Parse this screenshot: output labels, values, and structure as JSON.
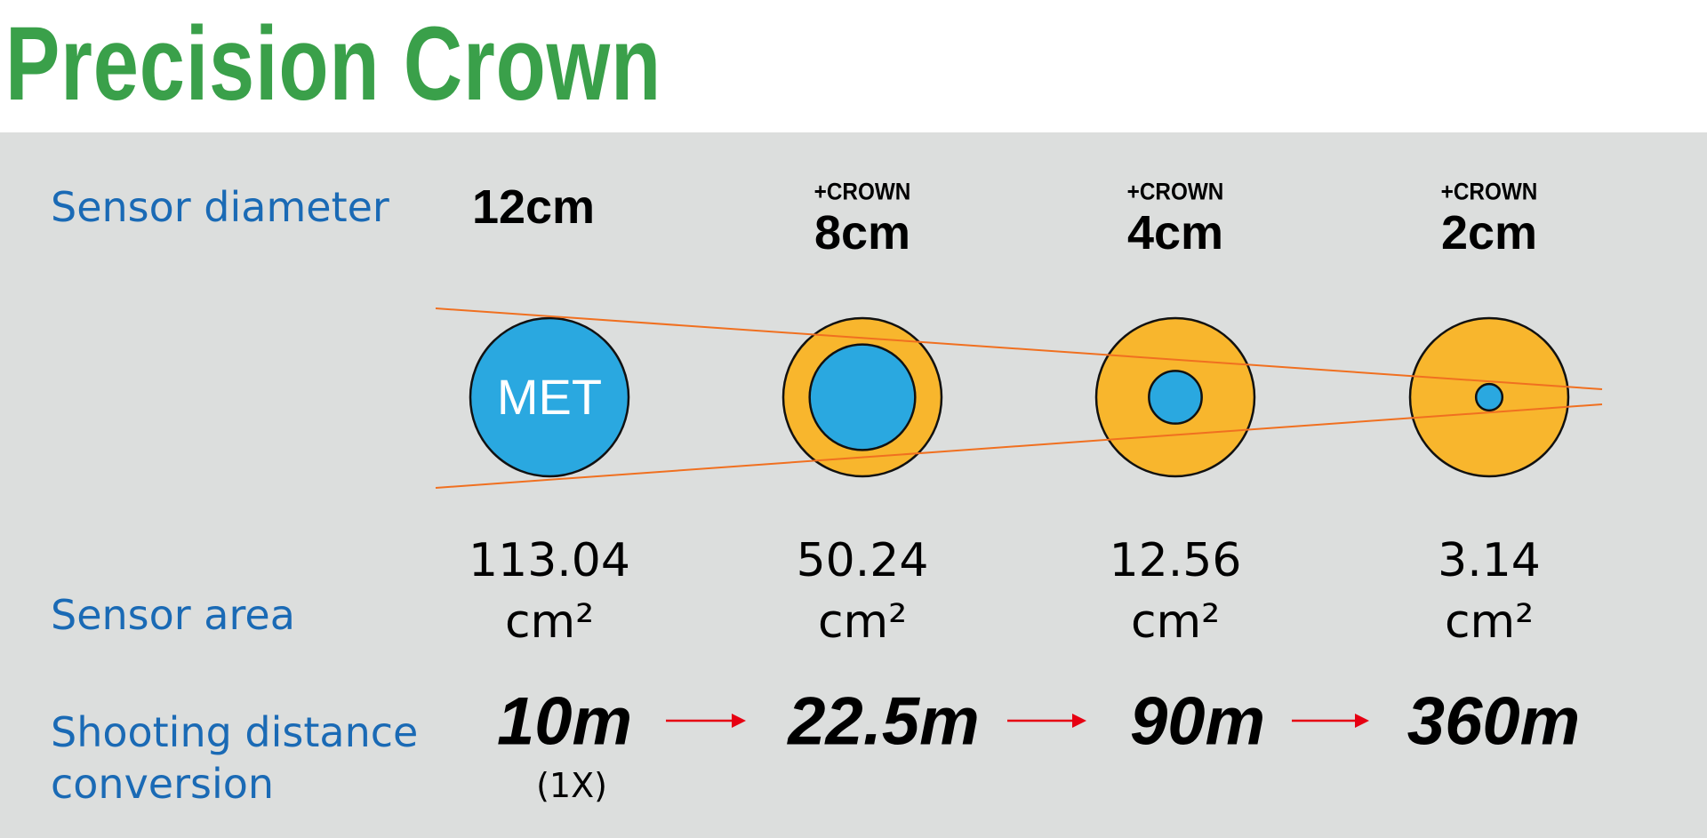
{
  "title": "Precision Crown",
  "row_labels": {
    "diameter": "Sensor diameter",
    "area": "Sensor area",
    "distance_line1": "Shooting distance",
    "distance_line2": "conversion"
  },
  "colors": {
    "title": "#3aa04a",
    "label": "#1a6ab5",
    "sensor": "#2aa8e0",
    "crown": "#f8b62d",
    "guide_line": "#f07020",
    "arrow": "#e60012",
    "panel": "#dcdedd"
  },
  "columns": [
    {
      "prefix": "",
      "diameter": "12cm",
      "diameter_cm": 12,
      "area": "113.04",
      "area_unit": "cm²",
      "distance": "10m",
      "note": "(1X)",
      "circle_label": "MET",
      "crown": false
    },
    {
      "prefix": "+CROWN",
      "diameter": "8cm",
      "diameter_cm": 8,
      "area": "50.24",
      "area_unit": "cm²",
      "distance": "22.5m",
      "crown": true
    },
    {
      "prefix": "+CROWN",
      "diameter": "4cm",
      "diameter_cm": 4,
      "area": "12.56",
      "area_unit": "cm²",
      "distance": "90m",
      "crown": true
    },
    {
      "prefix": "+CROWN",
      "diameter": "2cm",
      "diameter_cm": 2,
      "area": "3.14",
      "area_unit": "cm²",
      "distance": "360m",
      "crown": true
    }
  ]
}
